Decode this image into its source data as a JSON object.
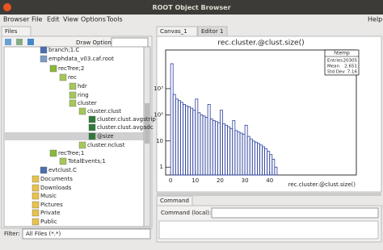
{
  "window": {
    "title": "ROOT Object Browser"
  },
  "menu": [
    "Browser",
    "File",
    "Edit",
    "View",
    "Options",
    "Tools"
  ],
  "help_menu": "Help",
  "left_panel": {
    "tab": "Files",
    "draw_option_label": "Draw Option:",
    "tree": [
      "branch;1.C",
      "emphdata_v03.caf.root",
      "recTree;2",
      "rec",
      "hdr",
      "ring",
      "cluster",
      "cluster.clust",
      "cluster.clust.avgstrip",
      "cluster.clust.avgadc",
      "@size",
      "cluster.nclust",
      "recTree;1",
      "TotalEvents;1",
      "evtclust.C",
      "Documents",
      "Downloads",
      "Music",
      "Pictures",
      "Private",
      "Public"
    ],
    "filter_label": "Filter:",
    "filter_value": "All Files (*.*)"
  },
  "right_panel": {
    "tabs": [
      "Canvas_1",
      "Editor 1"
    ],
    "command_tab": "Command",
    "command_label": "Command (local):"
  },
  "chart_data": {
    "type": "histogram",
    "title": "rec.cluster.@clust.size()",
    "x_label": "rec.cluster.@clust.size()",
    "bins": [
      0,
      1,
      2,
      3,
      4,
      5,
      6,
      7,
      8,
      9,
      10,
      11,
      12,
      13,
      14,
      15,
      16,
      17,
      18,
      19,
      20,
      21,
      22,
      23,
      24,
      25,
      26,
      27,
      28,
      29,
      30,
      31,
      32,
      33,
      34,
      35,
      36,
      37,
      38,
      39,
      40,
      41,
      42,
      43
    ],
    "values": [
      9000,
      600,
      400,
      350,
      300,
      250,
      220,
      200,
      180,
      150,
      400,
      120,
      100,
      90,
      80,
      250,
      70,
      60,
      55,
      50,
      150,
      45,
      40,
      35,
      30,
      60,
      25,
      22,
      20,
      18,
      40,
      15,
      12,
      10,
      9,
      8,
      7,
      6,
      5,
      4,
      3,
      2,
      1
    ],
    "color": "#2b3f9e",
    "log_y": true,
    "xlim": [
      -2,
      75
    ],
    "xticks": [
      0,
      10,
      20,
      30,
      40
    ],
    "ylim": [
      0.5,
      30000
    ],
    "yticks": [
      1,
      10,
      {
        "value": 100,
        "label": "10²"
      },
      {
        "value": 1000,
        "label": "10³"
      }
    ],
    "stats": {
      "title": "htemp",
      "rows": [
        {
          "label": "Entries",
          "value": 20305
        },
        {
          "label": "Mean",
          "value": 2.651
        },
        {
          "label": "Std Dev",
          "value": 7.16
        }
      ]
    }
  }
}
